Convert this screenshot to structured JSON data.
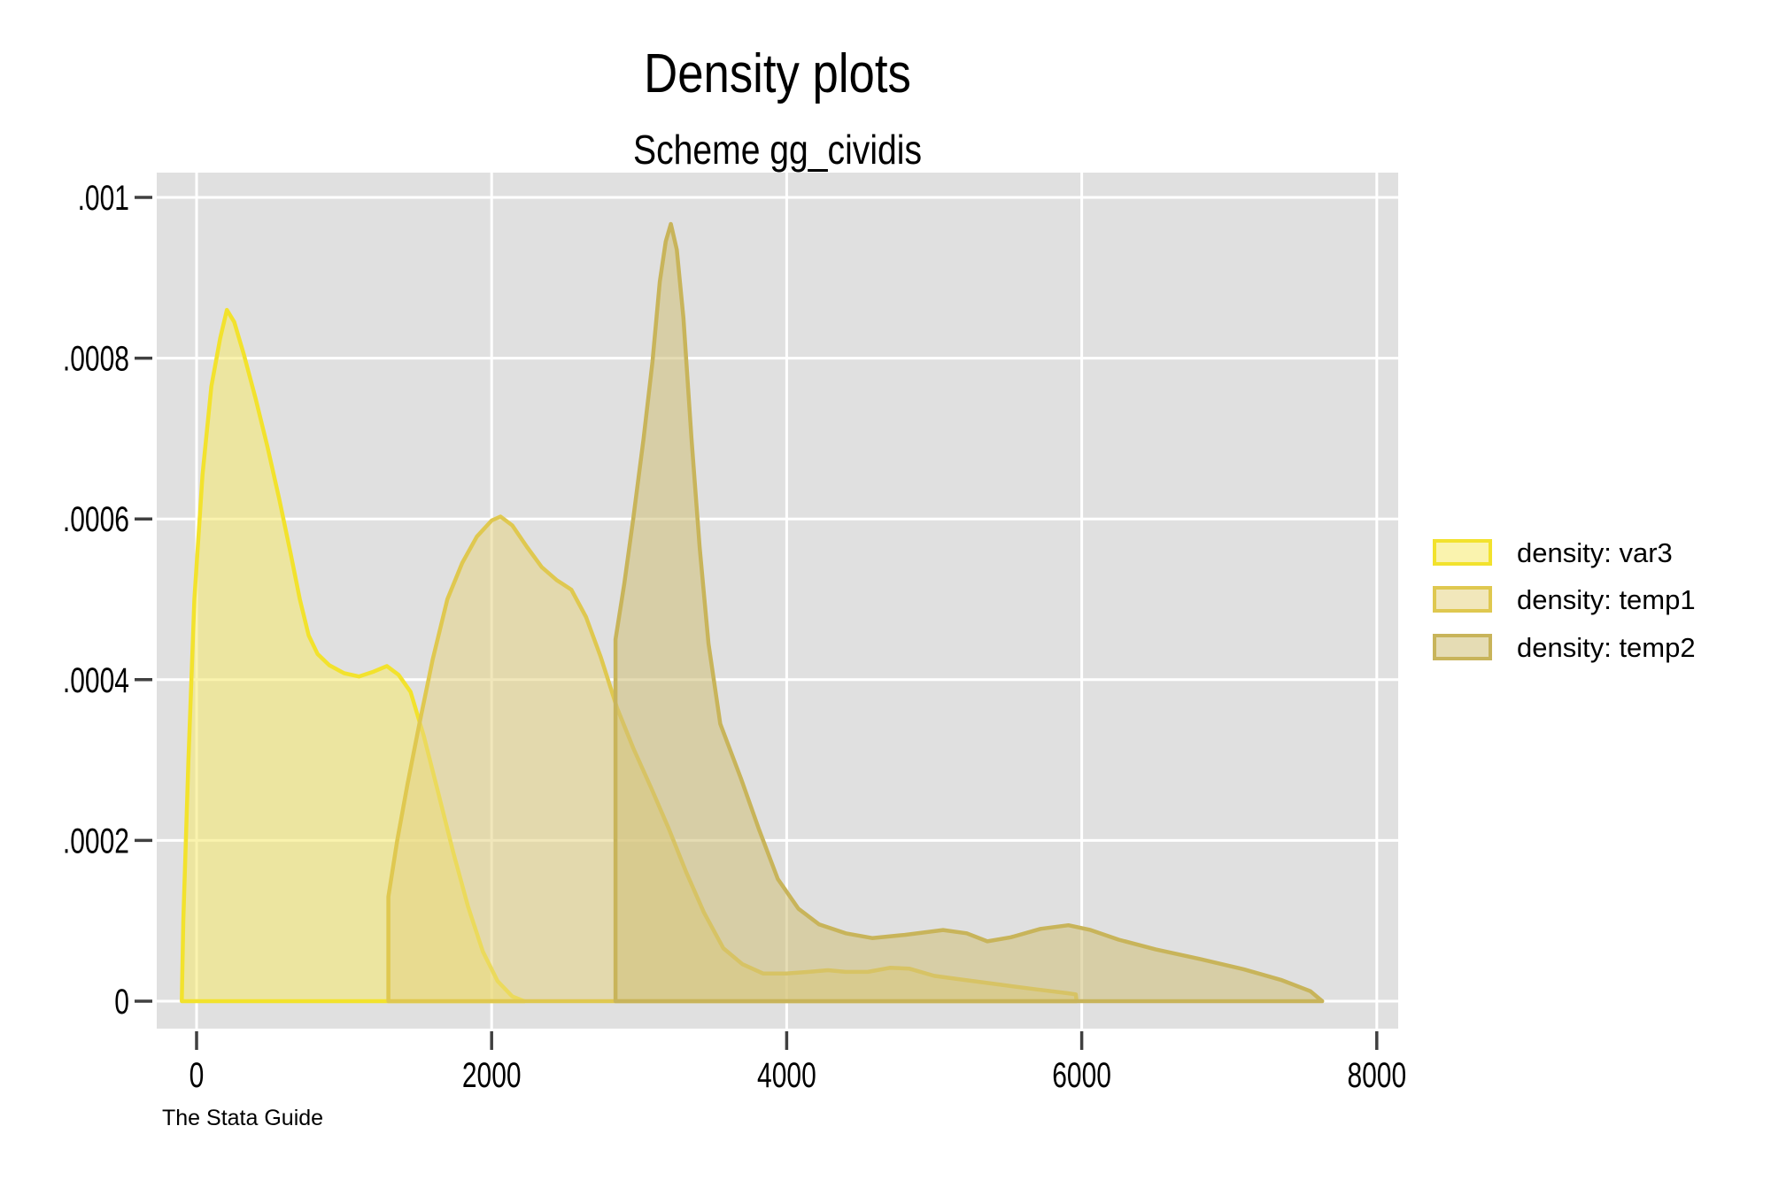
{
  "title": "Density plots",
  "subtitle": "Scheme gg_cividis",
  "footer": "The Stata Guide",
  "chart_data": {
    "type": "area",
    "title": "Density plots",
    "subtitle": "Scheme gg_cividis",
    "xlabel": "",
    "ylabel": "",
    "xlim": [
      -270,
      8140
    ],
    "ylim": [
      -3.4e-05,
      0.00103
    ],
    "grid": true,
    "legend_position": "right-outside",
    "plot_background": "#E0E0E0",
    "gridline_color": "#FFFFFF",
    "tick_color": "#404040",
    "x_ticks": [
      {
        "value": 0,
        "label": "0"
      },
      {
        "value": 2000,
        "label": "2000"
      },
      {
        "value": 4000,
        "label": "4000"
      },
      {
        "value": 6000,
        "label": "6000"
      },
      {
        "value": 8000,
        "label": "8000"
      }
    ],
    "y_ticks": [
      {
        "value": 0,
        "label": "0"
      },
      {
        "value": 0.0002,
        "label": ".0002"
      },
      {
        "value": 0.0004,
        "label": ".0004"
      },
      {
        "value": 0.0006,
        "label": ".0006"
      },
      {
        "value": 0.0008,
        "label": ".0008"
      },
      {
        "value": 0.001,
        "label": ".001"
      }
    ],
    "series": [
      {
        "name": "density: var3",
        "stroke": "#F2E22D",
        "fill": "#F5E96B",
        "fill_opacity": 0.55,
        "points": [
          [
            -100,
            0
          ],
          [
            -90,
            0.0001
          ],
          [
            -55,
            0.0003
          ],
          [
            -15,
            0.0005
          ],
          [
            40,
            0.000655
          ],
          [
            100,
            0.000765
          ],
          [
            160,
            0.000825
          ],
          [
            205,
            0.00086
          ],
          [
            255,
            0.000845
          ],
          [
            320,
            0.000805
          ],
          [
            400,
            0.00075
          ],
          [
            480,
            0.00069
          ],
          [
            560,
            0.000625
          ],
          [
            640,
            0.000555
          ],
          [
            700,
            0.0005
          ],
          [
            760,
            0.000455
          ],
          [
            820,
            0.000432
          ],
          [
            900,
            0.000418
          ],
          [
            1000,
            0.000408
          ],
          [
            1100,
            0.000404
          ],
          [
            1200,
            0.00041
          ],
          [
            1290,
            0.000417
          ],
          [
            1370,
            0.000406
          ],
          [
            1450,
            0.000385
          ],
          [
            1540,
            0.00033
          ],
          [
            1640,
            0.000258
          ],
          [
            1740,
            0.000185
          ],
          [
            1840,
            0.000118
          ],
          [
            1940,
            6.2e-05
          ],
          [
            2040,
            2.5e-05
          ],
          [
            2140,
            6e-06
          ],
          [
            2220,
            0
          ]
        ]
      },
      {
        "name": "density: temp1",
        "stroke": "#DFC850",
        "fill": "#E5D384",
        "fill_opacity": 0.55,
        "points": [
          [
            1300,
            0
          ],
          [
            1300,
            0.00013
          ],
          [
            1360,
            0.0002
          ],
          [
            1430,
            0.00027
          ],
          [
            1510,
            0.000345
          ],
          [
            1600,
            0.000425
          ],
          [
            1700,
            0.0005
          ],
          [
            1800,
            0.000545
          ],
          [
            1900,
            0.000578
          ],
          [
            2000,
            0.000598
          ],
          [
            2060,
            0.000603
          ],
          [
            2140,
            0.000592
          ],
          [
            2240,
            0.000565
          ],
          [
            2340,
            0.00054
          ],
          [
            2440,
            0.000524
          ],
          [
            2540,
            0.000512
          ],
          [
            2640,
            0.000478
          ],
          [
            2740,
            0.000428
          ],
          [
            2850,
            0.000365
          ],
          [
            2960,
            0.000315
          ],
          [
            3080,
            0.000266
          ],
          [
            3200,
            0.000215
          ],
          [
            3320,
            0.00016
          ],
          [
            3440,
            0.00011
          ],
          [
            3570,
            6.6e-05
          ],
          [
            3700,
            4.6e-05
          ],
          [
            3840,
            3.45e-05
          ],
          [
            4000,
            3.45e-05
          ],
          [
            4150,
            3.65e-05
          ],
          [
            4280,
            3.85e-05
          ],
          [
            4400,
            3.65e-05
          ],
          [
            4550,
            3.65e-05
          ],
          [
            4700,
            4.15e-05
          ],
          [
            4830,
            4.05e-05
          ],
          [
            5000,
            3.15e-05
          ],
          [
            5200,
            2.65e-05
          ],
          [
            5450,
            2.05e-05
          ],
          [
            5700,
            1.45e-05
          ],
          [
            5900,
            1e-05
          ],
          [
            5960,
            8.5e-06
          ],
          [
            5965,
            0
          ]
        ]
      },
      {
        "name": "density: temp2",
        "stroke": "#C8B45A",
        "fill": "#CFC077",
        "fill_opacity": 0.55,
        "points": [
          [
            2840,
            0
          ],
          [
            2840,
            0.00045
          ],
          [
            2900,
            0.00052
          ],
          [
            2960,
            0.0006
          ],
          [
            3030,
            0.0007
          ],
          [
            3090,
            0.000795
          ],
          [
            3140,
            0.000895
          ],
          [
            3180,
            0.000945
          ],
          [
            3215,
            0.000967
          ],
          [
            3255,
            0.000935
          ],
          [
            3300,
            0.00085
          ],
          [
            3355,
            0.0007
          ],
          [
            3410,
            0.000565
          ],
          [
            3470,
            0.000445
          ],
          [
            3550,
            0.000345
          ],
          [
            3690,
            0.000277
          ],
          [
            3810,
            0.000215
          ],
          [
            3940,
            0.000152
          ],
          [
            4080,
            0.000115
          ],
          [
            4220,
            9.55e-05
          ],
          [
            4400,
            8.45e-05
          ],
          [
            4580,
            7.85e-05
          ],
          [
            4800,
            8.25e-05
          ],
          [
            5060,
            8.85e-05
          ],
          [
            5220,
            8.45e-05
          ],
          [
            5360,
            7.45e-05
          ],
          [
            5520,
            7.95e-05
          ],
          [
            5720,
            9e-05
          ],
          [
            5910,
            9.45e-05
          ],
          [
            6060,
            8.85e-05
          ],
          [
            6250,
            7.65e-05
          ],
          [
            6500,
            6.45e-05
          ],
          [
            6800,
            5.25e-05
          ],
          [
            7100,
            3.95e-05
          ],
          [
            7350,
            2.65e-05
          ],
          [
            7550,
            1.25e-05
          ],
          [
            7630,
            0
          ]
        ]
      }
    ]
  }
}
